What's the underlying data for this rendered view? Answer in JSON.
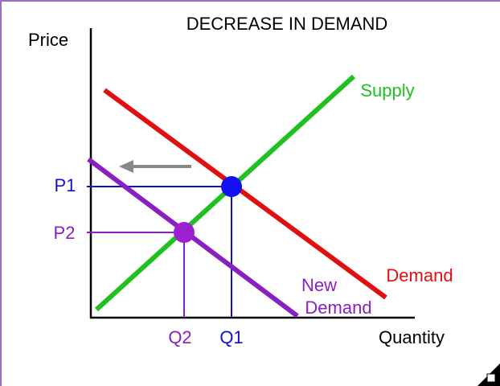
{
  "title": "DECREASE IN DEMAND",
  "axes": {
    "y_label": "Price",
    "x_label": "Quantity"
  },
  "curves": {
    "supply": "Supply",
    "demand": "Demand",
    "new_demand": [
      "New",
      "Demand"
    ]
  },
  "equilibria": [
    {
      "price": "P1",
      "quantity": "Q1"
    },
    {
      "price": "P2",
      "quantity": "Q2"
    }
  ]
}
